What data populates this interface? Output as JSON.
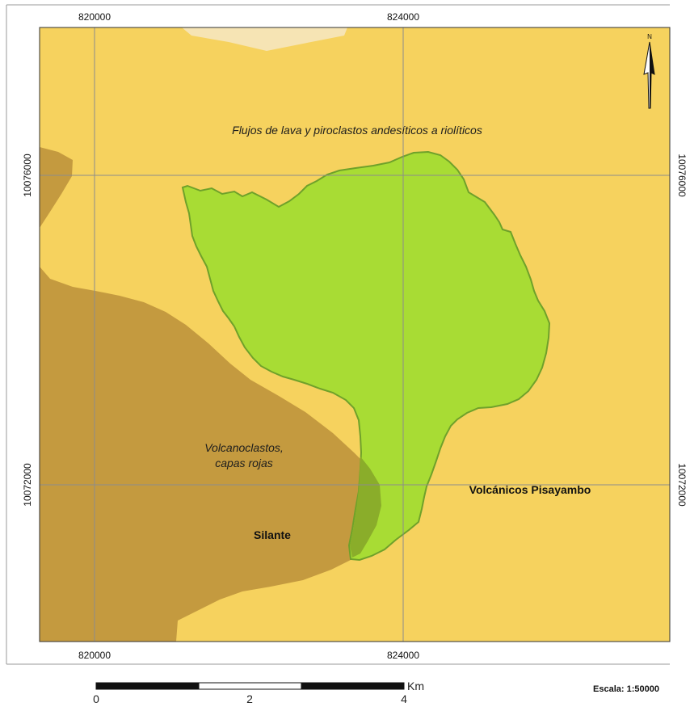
{
  "map": {
    "colors": {
      "background": "#f6d25e",
      "volcanoclastos": "#c49a3f",
      "intrusion": "#a8dc34",
      "intrusion_border": "#6fa12a",
      "overlap": "#8aad2a",
      "top_unit": "#f6e4b4",
      "grid": "#8c8c8c",
      "frame": "#333333"
    },
    "grid": {
      "x_top": [
        "820000",
        "824000"
      ],
      "x_bottom": [
        "820000",
        "824000"
      ],
      "y_left": [
        "10076000",
        "10072000"
      ],
      "y_right": [
        "10076000",
        "10072000"
      ]
    },
    "labels": {
      "flujos": "Flujos de lava y piroclastos andesíticos a riolíticos",
      "volcanoclastos_line1": "Volcanoclastos,",
      "volcanoclastos_line2": "capas rojas",
      "silante": "Silante",
      "pisayambo": "Volcánicos Pisayambo"
    },
    "north_arrow": {
      "icon": "north-arrow-icon",
      "letter": "N"
    },
    "scalebar": {
      "ticks": [
        "0",
        "2",
        "4"
      ],
      "unit": "Km"
    },
    "scale": "Escala: 1:50000"
  }
}
